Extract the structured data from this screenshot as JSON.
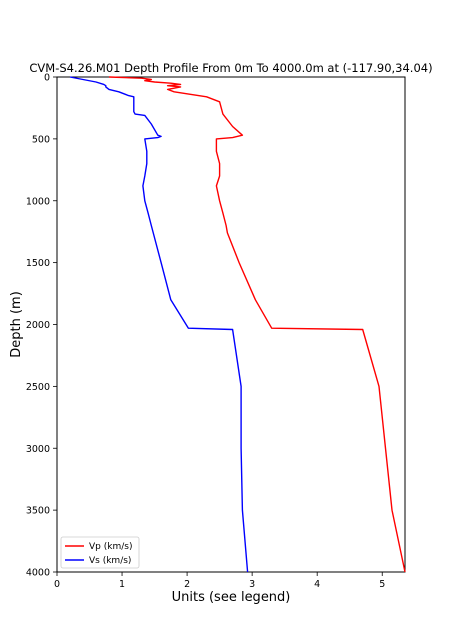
{
  "chart_data": {
    "type": "line",
    "title": "CVM-S4.26.M01 Depth Profile From 0m To 4000.0m at (-117.90,34.04)",
    "xlabel": "Units (see legend)",
    "ylabel": "Depth (m)",
    "xlim": [
      0,
      5.35
    ],
    "ylim": [
      4000,
      0
    ],
    "x_ticks": [
      0,
      1,
      2,
      3,
      4,
      5
    ],
    "y_ticks": [
      0,
      500,
      1000,
      1500,
      2000,
      2500,
      3000,
      3500,
      4000
    ],
    "legend_position": "lower-left",
    "grid": false,
    "series": [
      {
        "name": "Vp (km/s)",
        "color": "#ff0000",
        "depth": [
          0,
          10,
          20,
          30,
          40,
          50,
          60,
          70,
          80,
          100,
          120,
          140,
          160,
          200,
          300,
          400,
          470,
          490,
          500,
          600,
          700,
          800,
          880,
          1000,
          1100,
          1200,
          1260,
          1500,
          1800,
          2030,
          2040,
          2500,
          3000,
          3500,
          4000
        ],
        "x": [
          0.8,
          1.3,
          1.45,
          1.35,
          1.5,
          1.75,
          1.9,
          1.7,
          1.9,
          1.7,
          1.8,
          2.05,
          2.3,
          2.5,
          2.55,
          2.7,
          2.85,
          2.7,
          2.45,
          2.45,
          2.5,
          2.5,
          2.45,
          2.5,
          2.55,
          2.6,
          2.62,
          2.8,
          3.05,
          3.3,
          4.7,
          4.95,
          5.05,
          5.15,
          5.35
        ]
      },
      {
        "name": "Vs (km/s)",
        "color": "#0000ff",
        "depth": [
          0,
          20,
          40,
          60,
          70,
          80,
          100,
          120,
          140,
          150,
          160,
          280,
          300,
          310,
          380,
          470,
          480,
          490,
          500,
          600,
          700,
          800,
          880,
          1000,
          1100,
          1200,
          1500,
          1800,
          2030,
          2040,
          2500,
          3000,
          3500,
          4000
        ],
        "x": [
          0.2,
          0.4,
          0.6,
          0.72,
          0.75,
          0.75,
          0.8,
          0.95,
          1.05,
          1.1,
          1.18,
          1.18,
          1.2,
          1.35,
          1.45,
          1.55,
          1.6,
          1.55,
          1.35,
          1.38,
          1.38,
          1.35,
          1.32,
          1.35,
          1.4,
          1.45,
          1.6,
          1.75,
          2.02,
          2.7,
          2.83,
          2.83,
          2.85,
          2.93
        ]
      }
    ]
  }
}
